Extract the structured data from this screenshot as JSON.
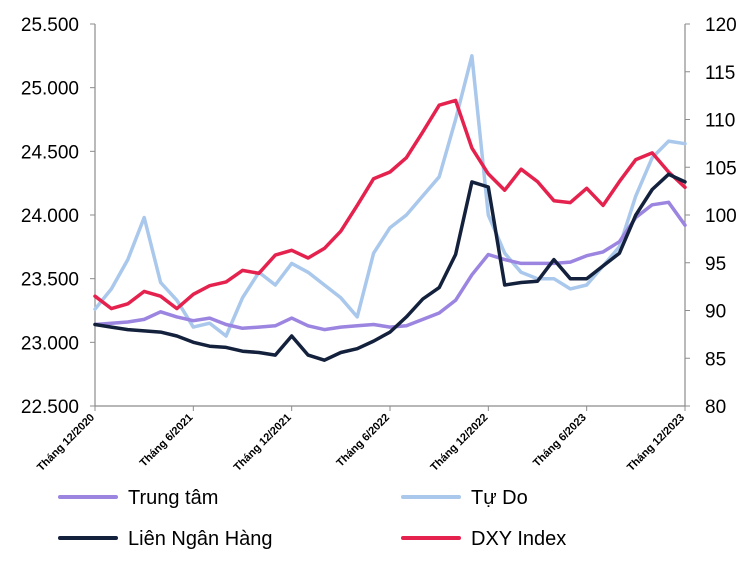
{
  "chart_data": {
    "type": "line",
    "title": "",
    "left_axis": {
      "label": "",
      "range": [
        22500,
        25500
      ],
      "ticks": [
        22500,
        23000,
        23500,
        24000,
        24500,
        25000,
        25500
      ],
      "tick_labels": [
        "22.500",
        "23.000",
        "23.500",
        "24.000",
        "24.500",
        "25.000",
        "25.500"
      ]
    },
    "right_axis": {
      "label": "",
      "range": [
        80,
        120
      ],
      "ticks": [
        80,
        85,
        90,
        95,
        100,
        105,
        110,
        115,
        120
      ],
      "tick_labels": [
        "80",
        "85",
        "90",
        "95",
        "100",
        "105",
        "110",
        "115",
        "120"
      ]
    },
    "x_axis": {
      "range": [
        "2020-12",
        "2023-12"
      ],
      "ticks": [
        "2020-12",
        "2021-06",
        "2021-12",
        "2022-06",
        "2022-12",
        "2023-06",
        "2023-12"
      ],
      "tick_labels": [
        "Tháng 12/2020",
        "Tháng 6/2021",
        "Tháng 12/2021",
        "Tháng 6/2022",
        "Tháng 12/2022",
        "Tháng 6/2023",
        "Tháng 12/2023"
      ]
    },
    "grid": false,
    "legend_position": "bottom",
    "x": [
      "2020-12",
      "2021-01",
      "2021-02",
      "2021-03",
      "2021-04",
      "2021-05",
      "2021-06",
      "2021-07",
      "2021-08",
      "2021-09",
      "2021-10",
      "2021-11",
      "2021-12",
      "2022-01",
      "2022-02",
      "2022-03",
      "2022-04",
      "2022-05",
      "2022-06",
      "2022-07",
      "2022-08",
      "2022-09",
      "2022-10",
      "2022-11",
      "2022-12",
      "2023-01",
      "2023-02",
      "2023-03",
      "2023-04",
      "2023-05",
      "2023-06",
      "2023-07",
      "2023-08",
      "2023-09",
      "2023-10",
      "2023-11",
      "2023-12"
    ],
    "series": [
      {
        "name": "Trung tâm",
        "axis": "left",
        "color": "#9b85e0",
        "values": [
          23140,
          23150,
          23160,
          23180,
          23240,
          23200,
          23170,
          23190,
          23140,
          23110,
          23120,
          23130,
          23190,
          23130,
          23100,
          23120,
          23130,
          23140,
          23120,
          23130,
          23180,
          23230,
          23330,
          23530,
          23690,
          23650,
          23620,
          23620,
          23620,
          23630,
          23680,
          23710,
          23790,
          23980,
          24080,
          24100,
          23920
        ]
      },
      {
        "name": "Tự Do",
        "axis": "left",
        "color": "#a9c8ec",
        "values": [
          23260,
          23420,
          23650,
          23980,
          23470,
          23330,
          23120,
          23150,
          23050,
          23350,
          23550,
          23450,
          23620,
          23550,
          23450,
          23350,
          23200,
          23700,
          23900,
          24000,
          24150,
          24300,
          24750,
          25250,
          24000,
          23700,
          23550,
          23500,
          23500,
          23420,
          23450,
          23600,
          23750,
          24150,
          24450,
          24580,
          24560
        ]
      },
      {
        "name": "Liên Ngân Hàng",
        "axis": "left",
        "color": "#14213d",
        "values": [
          23140,
          23120,
          23100,
          23090,
          23080,
          23050,
          23000,
          22970,
          22960,
          22930,
          22920,
          22900,
          23050,
          22900,
          22860,
          22920,
          22950,
          23010,
          23080,
          23200,
          23340,
          23430,
          23690,
          24260,
          24220,
          23450,
          23470,
          23480,
          23650,
          23500,
          23500,
          23600,
          23700,
          24000,
          24200,
          24320,
          24260
        ]
      },
      {
        "name": "DXY Index",
        "axis": "right",
        "color": "#e5224e",
        "values": [
          91.5,
          90.2,
          90.7,
          92.0,
          91.5,
          90.2,
          91.7,
          92.6,
          93.0,
          94.2,
          93.9,
          95.8,
          96.3,
          95.5,
          96.5,
          98.3,
          101.0,
          103.8,
          104.5,
          106.0,
          108.7,
          111.5,
          112.0,
          107.0,
          104.3,
          102.6,
          104.8,
          103.5,
          101.5,
          101.3,
          102.8,
          101.0,
          103.5,
          105.8,
          106.5,
          104.5,
          102.9
        ]
      }
    ]
  }
}
